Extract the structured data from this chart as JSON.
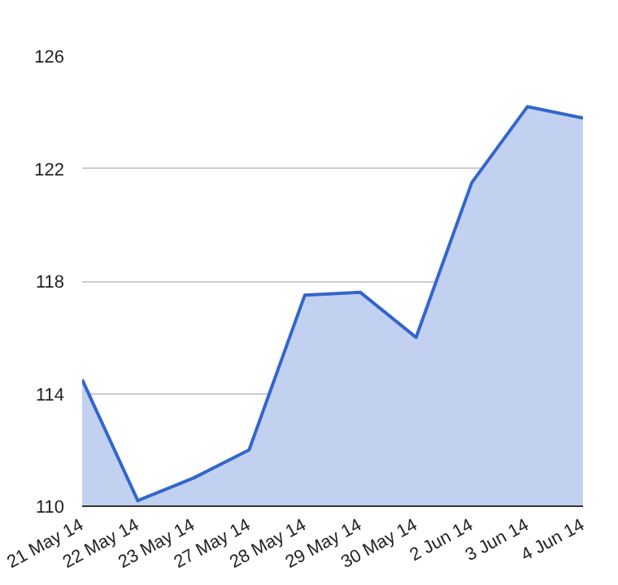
{
  "chart_data": {
    "type": "area",
    "categories": [
      "21 May 14",
      "22 May 14",
      "23 May 14",
      "27 May 14",
      "28 May 14",
      "29 May 14",
      "30 May 14",
      "2 Jun 14",
      "3 Jun 14",
      "4 Jun 14"
    ],
    "series": [
      {
        "color": "#3366cc",
        "values": [
          114.5,
          110.2,
          111.0,
          112.0,
          117.5,
          117.6,
          116.0,
          121.5,
          124.2,
          123.8
        ]
      }
    ],
    "ylim": [
      110,
      126
    ],
    "yticks": [
      110,
      114,
      118,
      122,
      126
    ],
    "grid": "y"
  }
}
